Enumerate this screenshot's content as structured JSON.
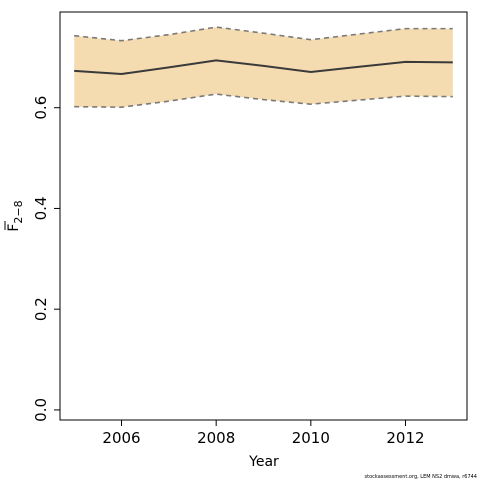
{
  "chart_data": {
    "type": "line",
    "title": "",
    "xlabel": "Year",
    "ylabel_base": "F",
    "ylabel_subscript": "2−8",
    "xlim": [
      2004.7,
      2013.3
    ],
    "ylim": [
      -0.02,
      0.79
    ],
    "x_ticks": [
      2006,
      2008,
      2010,
      2012
    ],
    "y_ticks": [
      0.0,
      0.2,
      0.4,
      0.6
    ],
    "y_tick_labels": [
      "0.0",
      "0.2",
      "0.4",
      "0.6"
    ],
    "grid": false,
    "legend": "none",
    "series": [
      {
        "x": [
          2005,
          2006,
          2007,
          2008,
          2009,
          2010,
          2011,
          2012,
          2013
        ],
        "estimate": [
          0.673,
          0.667,
          0.68,
          0.694,
          0.683,
          0.671,
          0.681,
          0.691,
          0.69
        ],
        "lower": [
          0.602,
          0.601,
          0.613,
          0.627,
          0.616,
          0.607,
          0.615,
          0.623,
          0.622
        ],
        "upper": [
          0.743,
          0.733,
          0.745,
          0.76,
          0.748,
          0.735,
          0.746,
          0.757,
          0.757
        ]
      }
    ],
    "colors": {
      "band": "#f5dcb0",
      "line": "#3a3a3a",
      "bounds": "#7a7a7a"
    },
    "footer": "stockassessment.org, LEM NS2 dmwa, r6744"
  }
}
